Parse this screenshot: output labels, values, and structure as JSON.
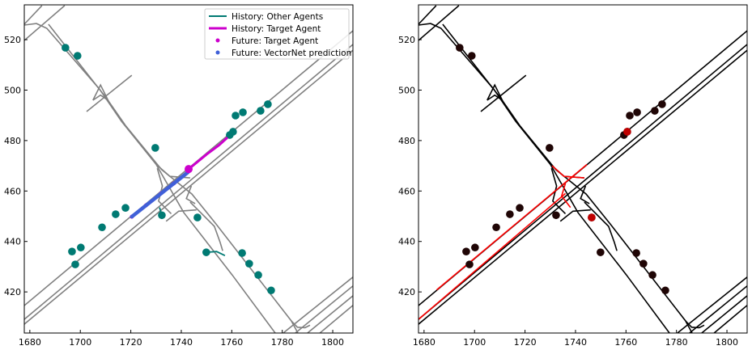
{
  "chart_data": [
    {
      "type": "scatter",
      "panel": "left",
      "xlim": [
        1677.8,
        1808
      ],
      "ylim": [
        403.7,
        533.8
      ],
      "xticks": [
        1680,
        1700,
        1720,
        1740,
        1760,
        1780,
        1800
      ],
      "yticks": [
        420,
        440,
        460,
        480,
        500,
        520
      ],
      "grid": false,
      "legend_placement": "top-right",
      "legend": [
        {
          "label": "History: Other Agents",
          "kind": "line",
          "color": "#007a73"
        },
        {
          "label": "History: Target Agent",
          "kind": "line",
          "color": "#cc00cc"
        },
        {
          "label": "Future: Target Agent",
          "kind": "dot",
          "color": "#cc00cc"
        },
        {
          "label": "Future: VectorNet prediction",
          "kind": "dot",
          "color": "#4060d8"
        }
      ],
      "lane_color": "#808080",
      "agent_color": "#007a73",
      "target_history": [
        [
          1742.9,
          468.7
        ],
        [
          1750,
          474.5
        ],
        [
          1755,
          478.2
        ],
        [
          1758.3,
          481.2
        ]
      ],
      "target_future": [
        [
          1720.4,
          449.8
        ],
        [
          1726,
          454.3
        ],
        [
          1732,
          459.1
        ],
        [
          1737,
          463
        ],
        [
          1742.9,
          468.7
        ]
      ],
      "prediction": [
        [
          1720.4,
          449.8
        ],
        [
          1742.6,
          467.4
        ]
      ],
      "other_history": [
        [
          [
            1750,
            435.7
          ],
          [
            1754,
            436
          ],
          [
            1757.3,
            434.4
          ]
        ],
        [
          [
            1731.4,
            453.5
          ],
          [
            1732.3,
            450.4
          ]
        ]
      ],
      "target_current": [
        1742.9,
        468.7
      ]
    },
    {
      "type": "scatter",
      "panel": "right",
      "xlim": [
        1677.8,
        1808
      ],
      "ylim": [
        403.7,
        533.8
      ],
      "xticks": [
        1680,
        1700,
        1720,
        1740,
        1760,
        1780,
        1800
      ],
      "yticks": [
        420,
        440,
        460,
        480,
        500,
        520
      ],
      "grid": false,
      "lane_color": "#000000",
      "highlight_lane_color": "#ff0000",
      "agent_color": "#1f0505",
      "highlight_agent_color": "#c00000",
      "highlight_agents": [
        [
          1760.5,
          483.5
        ],
        [
          1746.4,
          449.5
        ]
      ]
    }
  ],
  "agents": [
    [
      1694.1,
      516.8
    ],
    [
      1698.9,
      513.6
    ],
    [
      1729.7,
      477.1
    ],
    [
      1761.5,
      489.9
    ],
    [
      1764.4,
      491.2
    ],
    [
      1771.4,
      491.8
    ],
    [
      1774.3,
      494.4
    ],
    [
      1759.2,
      482.2
    ],
    [
      1760.5,
      483.5
    ],
    [
      1708.6,
      445.6
    ],
    [
      1714.0,
      450.8
    ],
    [
      1717.9,
      453.3
    ],
    [
      1732.3,
      450.4
    ],
    [
      1746.4,
      449.5
    ],
    [
      1696.7,
      436.0
    ],
    [
      1700.2,
      437.6
    ],
    [
      1698.0,
      430.9
    ],
    [
      1749.9,
      435.7
    ],
    [
      1764.1,
      435.4
    ],
    [
      1766.9,
      431.2
    ],
    [
      1770.5,
      426.7
    ],
    [
      1775.6,
      420.6
    ]
  ],
  "lanes": [
    [
      [
        1677.8,
        414.6
      ],
      [
        1808,
        523.5
      ]
    ],
    [
      [
        1677.8,
        409.1
      ],
      [
        1808,
        518.1
      ]
    ],
    [
      [
        1677.8,
        407.2
      ],
      [
        1808,
        515.8
      ]
    ],
    [
      [
        1677.8,
        519.7
      ],
      [
        1693.8,
        533.5
      ]
    ],
    [
      [
        1677.8,
        526.1
      ],
      [
        1684.8,
        533.5
      ]
    ],
    [
      [
        1677.8,
        525.8
      ],
      [
        1682.6,
        526.4
      ],
      [
        1686.7,
        524.5
      ],
      [
        1707.6,
        500.4
      ],
      [
        1716.3,
        487.6
      ],
      [
        1730,
        470.6
      ],
      [
        1741,
        451.4
      ],
      [
        1760.2,
        426.7
      ],
      [
        1777.2,
        403.7
      ]
    ],
    [
      [
        1687.4,
        526.1
      ],
      [
        1710.5,
        496.6
      ],
      [
        1717.9,
        486
      ],
      [
        1732.3,
        468.4
      ],
      [
        1744.2,
        458.8
      ],
      [
        1753.8,
        446.9
      ],
      [
        1783.6,
        408.5
      ],
      [
        1786.2,
        403.7
      ]
    ],
    [
      [
        1743.5,
        455.6
      ],
      [
        1753.1,
        446
      ],
      [
        1755.4,
        439.6
      ],
      [
        1756.4,
        436.3
      ]
    ],
    [
      [
        1702.5,
        491.5
      ],
      [
        1720.4,
        505.9
      ]
    ],
    [
      [
        1705,
        496
      ],
      [
        1708,
        498
      ],
      [
        1711,
        496
      ],
      [
        1708,
        502
      ],
      [
        1705,
        496
      ]
    ],
    [
      [
        1730.7,
        470
      ],
      [
        1735.5,
        465.8
      ],
      [
        1743.5,
        465.2
      ]
    ],
    [
      [
        1730.5,
        469
      ],
      [
        1732.5,
        462
      ],
      [
        1731,
        456
      ],
      [
        1736,
        451
      ]
    ],
    [
      [
        1734,
        448
      ],
      [
        1739,
        452
      ],
      [
        1746,
        452.5
      ]
    ],
    [
      [
        1744,
        462
      ],
      [
        1742,
        457
      ],
      [
        1745.5,
        455
      ]
    ],
    [
      [
        1808.3,
        426.1
      ],
      [
        1780.4,
        403.7
      ]
    ],
    [
      [
        1808.3,
        422.6
      ],
      [
        1785.2,
        403.7
      ]
    ],
    [
      [
        1808.3,
        418.7
      ],
      [
        1790,
        403.7
      ]
    ],
    [
      [
        1808.3,
        414.9
      ],
      [
        1794.9,
        403.7
      ]
    ],
    [
      [
        1783.6,
        408.5
      ],
      [
        1786,
        406
      ],
      [
        1789,
        405.8
      ],
      [
        1791,
        406.8
      ]
    ]
  ],
  "highlight_lanes": [
    [
      [
        1685,
        420.8
      ],
      [
        1744.5,
        470.5
      ]
    ],
    [
      [
        1677.8,
        409.1
      ],
      [
        1736,
        459
      ]
    ],
    [
      [
        1730.7,
        470
      ],
      [
        1735.5,
        465.8
      ],
      [
        1743.5,
        465.2
      ]
    ],
    [
      [
        1736,
        463
      ],
      [
        1734.5,
        458
      ],
      [
        1738,
        453.5
      ]
    ]
  ]
}
